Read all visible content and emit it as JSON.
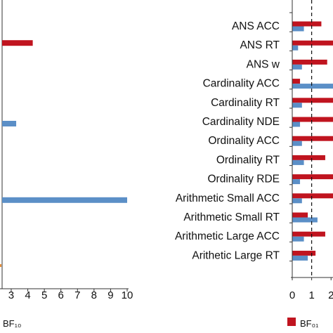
{
  "chart_data": [
    {
      "type": "bar",
      "orientation": "horizontal",
      "panel": "left",
      "categories": [
        "ANS ACC",
        "ANS RT",
        "ANS w",
        "Cardinality ACC",
        "Cardinality RT",
        "Cardinality NDE",
        "Ordinality ACC",
        "Ordinality RT",
        "Ordinality RDE",
        "Arithmetic Small ACC",
        "Arithmetic Small RT",
        "Arithmetic Large ACC",
        "Arithetic Large RT"
      ],
      "series": [
        {
          "name": "",
          "color": "#c0141f",
          "values": [
            null,
            4.3,
            null,
            null,
            null,
            null,
            null,
            null,
            null,
            null,
            null,
            null,
            null
          ]
        },
        {
          "name": "",
          "color": "#5b8fc7",
          "values": [
            null,
            null,
            null,
            null,
            null,
            3.3,
            null,
            null,
            null,
            10.0,
            null,
            null,
            null
          ]
        }
      ],
      "x_ticks": [
        "3",
        "4",
        "5",
        "6",
        "7",
        "8",
        "9",
        "10"
      ],
      "xlim": [
        2.45,
        10
      ],
      "legend": [
        {
          "text": "BF₁₀",
          "color": "#c0141f"
        }
      ],
      "grid": false
    },
    {
      "type": "bar",
      "orientation": "horizontal",
      "panel": "right",
      "categories": [
        "ANS ACC",
        "ANS RT",
        "ANS w",
        "Cardinality ACC",
        "Cardinality RT",
        "Cardinality NDE",
        "Ordinality ACC",
        "Ordinality RT",
        "Ordinality RDE",
        "Arithmetic Small ACC",
        "Arithmetic Small RT",
        "Arithmetic Large ACC",
        "Arithetic Large RT"
      ],
      "series": [
        {
          "name": "BF₀₁",
          "color": "#c0141f",
          "values": [
            1.5,
            2.1,
            1.8,
            0.4,
            2.1,
            2.1,
            2.1,
            1.7,
            2.1,
            2.1,
            0.8,
            1.7,
            1.2
          ]
        },
        {
          "name": "",
          "color": "#5b8fc7",
          "values": [
            0.6,
            0.3,
            0.5,
            2.1,
            0.5,
            0.4,
            0.5,
            0.6,
            0.4,
            0.5,
            1.3,
            0.6,
            0.8
          ]
        }
      ],
      "x_ticks": [
        "0",
        "1",
        "2"
      ],
      "xlim": [
        0,
        2.1
      ],
      "reference_line": {
        "x": 1,
        "style": "dashed"
      },
      "legend": [
        {
          "text": "BF₀₁",
          "color": "#c0141f"
        }
      ],
      "grid": false
    }
  ]
}
